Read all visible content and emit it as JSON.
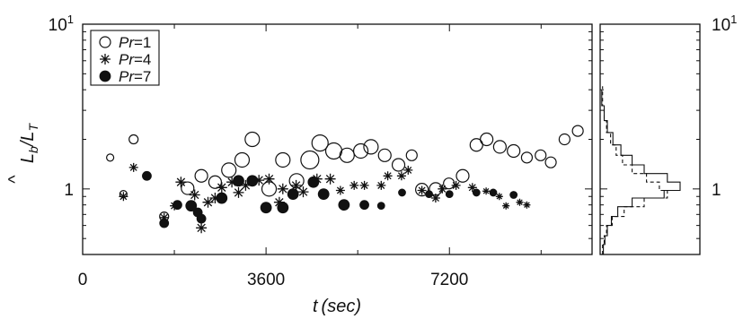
{
  "chart_data": {
    "type": "scatter",
    "xlabel_var": "t",
    "xlabel_unit": "(sec)",
    "ylabel_main": "L",
    "ylabel_hat": "^",
    "ylabel_sub_b": "b",
    "ylabel_denom": "/L",
    "ylabel_sub_T": "T",
    "xlim": [
      0,
      10000
    ],
    "ylim": [
      0.4,
      10
    ],
    "yscale": "log",
    "xticks": [
      {
        "value": 0,
        "label": "0"
      },
      {
        "value": 3600,
        "label": "3600"
      },
      {
        "value": 7200,
        "label": "7200"
      }
    ],
    "yticks": [
      {
        "value": 1,
        "label": "1"
      },
      {
        "value": 10,
        "base": "10",
        "exp": "1"
      }
    ],
    "legend": {
      "position": "top-left",
      "entries": [
        {
          "prefix": "Pr",
          "suffix": "=1",
          "marker": "open-circle"
        },
        {
          "prefix": "Pr",
          "suffix": "=4",
          "marker": "asterisk"
        },
        {
          "prefix": "Pr",
          "suffix": "=7",
          "marker": "filled-circle"
        }
      ]
    },
    "series": [
      {
        "marker": "open-circle",
        "points": [
          {
            "x": 540,
            "y": 1.55,
            "s": 4
          },
          {
            "x": 800,
            "y": 0.93,
            "s": 4
          },
          {
            "x": 1000,
            "y": 2.0,
            "s": 5
          },
          {
            "x": 1600,
            "y": 0.68,
            "s": 5
          },
          {
            "x": 2060,
            "y": 1.01,
            "s": 7
          },
          {
            "x": 2330,
            "y": 1.2,
            "s": 7
          },
          {
            "x": 2600,
            "y": 1.1,
            "s": 7
          },
          {
            "x": 2870,
            "y": 1.3,
            "s": 8
          },
          {
            "x": 3130,
            "y": 1.5,
            "s": 8
          },
          {
            "x": 3330,
            "y": 2.0,
            "s": 8
          },
          {
            "x": 3660,
            "y": 1.0,
            "s": 8
          },
          {
            "x": 3930,
            "y": 1.5,
            "s": 8
          },
          {
            "x": 4200,
            "y": 1.12,
            "s": 8
          },
          {
            "x": 4460,
            "y": 1.5,
            "s": 10
          },
          {
            "x": 4660,
            "y": 1.9,
            "s": 9
          },
          {
            "x": 4930,
            "y": 1.7,
            "s": 9
          },
          {
            "x": 5190,
            "y": 1.6,
            "s": 8
          },
          {
            "x": 5460,
            "y": 1.7,
            "s": 8
          },
          {
            "x": 5660,
            "y": 1.8,
            "s": 8
          },
          {
            "x": 5930,
            "y": 1.6,
            "s": 7
          },
          {
            "x": 6200,
            "y": 1.4,
            "s": 7
          },
          {
            "x": 6460,
            "y": 1.6,
            "s": 6
          },
          {
            "x": 6660,
            "y": 0.99,
            "s": 7
          },
          {
            "x": 6930,
            "y": 1.0,
            "s": 7
          },
          {
            "x": 7190,
            "y": 1.08,
            "s": 6
          },
          {
            "x": 7460,
            "y": 1.2,
            "s": 7
          },
          {
            "x": 7730,
            "y": 1.85,
            "s": 7
          },
          {
            "x": 7930,
            "y": 2.0,
            "s": 7
          },
          {
            "x": 8190,
            "y": 1.8,
            "s": 7
          },
          {
            "x": 8460,
            "y": 1.7,
            "s": 7
          },
          {
            "x": 8720,
            "y": 1.55,
            "s": 6
          },
          {
            "x": 8990,
            "y": 1.6,
            "s": 6
          },
          {
            "x": 9190,
            "y": 1.45,
            "s": 6
          },
          {
            "x": 9460,
            "y": 2.0,
            "s": 6
          },
          {
            "x": 9720,
            "y": 2.25,
            "s": 6
          }
        ]
      },
      {
        "marker": "asterisk",
        "points": [
          {
            "x": 800,
            "y": 0.9,
            "s": 5
          },
          {
            "x": 1000,
            "y": 1.35,
            "s": 5
          },
          {
            "x": 1600,
            "y": 0.67,
            "s": 5
          },
          {
            "x": 1800,
            "y": 0.79,
            "s": 5
          },
          {
            "x": 1930,
            "y": 1.1,
            "s": 6
          },
          {
            "x": 2200,
            "y": 0.92,
            "s": 6
          },
          {
            "x": 2330,
            "y": 0.58,
            "s": 6
          },
          {
            "x": 2460,
            "y": 0.83,
            "s": 6
          },
          {
            "x": 2600,
            "y": 0.88,
            "s": 6
          },
          {
            "x": 2730,
            "y": 1.02,
            "s": 6
          },
          {
            "x": 2930,
            "y": 1.1,
            "s": 6
          },
          {
            "x": 3060,
            "y": 0.95,
            "s": 6
          },
          {
            "x": 3200,
            "y": 1.05,
            "s": 6
          },
          {
            "x": 3460,
            "y": 1.13,
            "s": 6
          },
          {
            "x": 3660,
            "y": 1.15,
            "s": 6
          },
          {
            "x": 3860,
            "y": 0.83,
            "s": 6
          },
          {
            "x": 3930,
            "y": 1.0,
            "s": 6
          },
          {
            "x": 4190,
            "y": 1.05,
            "s": 6
          },
          {
            "x": 4330,
            "y": 0.96,
            "s": 6
          },
          {
            "x": 4600,
            "y": 1.15,
            "s": 6
          },
          {
            "x": 4860,
            "y": 1.15,
            "s": 6
          },
          {
            "x": 5060,
            "y": 0.98,
            "s": 5
          },
          {
            "x": 5330,
            "y": 1.05,
            "s": 5
          },
          {
            "x": 5530,
            "y": 1.05,
            "s": 5
          },
          {
            "x": 5860,
            "y": 1.05,
            "s": 5
          },
          {
            "x": 5990,
            "y": 1.2,
            "s": 5
          },
          {
            "x": 6260,
            "y": 1.2,
            "s": 5
          },
          {
            "x": 6390,
            "y": 1.3,
            "s": 5
          },
          {
            "x": 6660,
            "y": 0.98,
            "s": 5
          },
          {
            "x": 6930,
            "y": 0.88,
            "s": 5
          },
          {
            "x": 7060,
            "y": 1.0,
            "s": 5
          },
          {
            "x": 7330,
            "y": 1.05,
            "s": 5
          },
          {
            "x": 7650,
            "y": 1.02,
            "s": 5
          },
          {
            "x": 7920,
            "y": 0.97,
            "s": 4
          },
          {
            "x": 8180,
            "y": 0.9,
            "s": 4
          },
          {
            "x": 8310,
            "y": 0.79,
            "s": 4
          },
          {
            "x": 8580,
            "y": 0.83,
            "s": 4
          },
          {
            "x": 8720,
            "y": 0.8,
            "s": 4
          }
        ]
      },
      {
        "marker": "filled-circle",
        "points": [
          {
            "x": 1260,
            "y": 1.2,
            "s": 5
          },
          {
            "x": 1600,
            "y": 0.62,
            "s": 5
          },
          {
            "x": 1860,
            "y": 0.8,
            "s": 5
          },
          {
            "x": 2130,
            "y": 0.79,
            "s": 6
          },
          {
            "x": 2260,
            "y": 0.72,
            "s": 5
          },
          {
            "x": 2330,
            "y": 0.66,
            "s": 5
          },
          {
            "x": 2730,
            "y": 0.88,
            "s": 6
          },
          {
            "x": 3060,
            "y": 1.12,
            "s": 6
          },
          {
            "x": 3330,
            "y": 1.12,
            "s": 6
          },
          {
            "x": 3600,
            "y": 0.77,
            "s": 6
          },
          {
            "x": 3930,
            "y": 0.77,
            "s": 6
          },
          {
            "x": 4130,
            "y": 0.93,
            "s": 6
          },
          {
            "x": 4530,
            "y": 1.1,
            "s": 6
          },
          {
            "x": 4730,
            "y": 0.93,
            "s": 6
          },
          {
            "x": 5130,
            "y": 0.8,
            "s": 6
          },
          {
            "x": 5530,
            "y": 0.8,
            "s": 5
          },
          {
            "x": 5860,
            "y": 0.79,
            "s": 4
          },
          {
            "x": 6270,
            "y": 0.95,
            "s": 4
          },
          {
            "x": 6800,
            "y": 0.93,
            "s": 4
          },
          {
            "x": 7200,
            "y": 0.93,
            "s": 4
          },
          {
            "x": 7730,
            "y": 0.95,
            "s": 4
          },
          {
            "x": 8060,
            "y": 0.95,
            "s": 4
          },
          {
            "x": 8460,
            "y": 0.92,
            "s": 4
          }
        ]
      }
    ],
    "side_histogram": {
      "series": [
        {
          "style": "solid",
          "bins": [
            {
              "lo": 0.4,
              "hi": 0.46,
              "n": 4
            },
            {
              "lo": 0.46,
              "hi": 0.52,
              "n": 6
            },
            {
              "lo": 0.52,
              "hi": 0.6,
              "n": 9
            },
            {
              "lo": 0.6,
              "hi": 0.68,
              "n": 14
            },
            {
              "lo": 0.68,
              "hi": 0.78,
              "n": 22
            },
            {
              "lo": 0.78,
              "hi": 0.88,
              "n": 40
            },
            {
              "lo": 0.88,
              "hi": 0.98,
              "n": 80
            },
            {
              "lo": 0.98,
              "hi": 1.1,
              "n": 100
            },
            {
              "lo": 1.1,
              "hi": 1.24,
              "n": 84
            },
            {
              "lo": 1.24,
              "hi": 1.4,
              "n": 55
            },
            {
              "lo": 1.4,
              "hi": 1.6,
              "n": 40
            },
            {
              "lo": 1.6,
              "hi": 1.85,
              "n": 26
            },
            {
              "lo": 1.85,
              "hi": 2.2,
              "n": 16
            },
            {
              "lo": 2.2,
              "hi": 2.6,
              "n": 9
            },
            {
              "lo": 2.6,
              "hi": 3.2,
              "n": 5
            },
            {
              "lo": 3.2,
              "hi": 4.0,
              "n": 2
            }
          ]
        },
        {
          "style": "dashed",
          "bins": [
            {
              "lo": 0.4,
              "hi": 0.46,
              "n": 3
            },
            {
              "lo": 0.46,
              "hi": 0.52,
              "n": 5
            },
            {
              "lo": 0.52,
              "hi": 0.6,
              "n": 8
            },
            {
              "lo": 0.6,
              "hi": 0.68,
              "n": 15
            },
            {
              "lo": 0.68,
              "hi": 0.78,
              "n": 30
            },
            {
              "lo": 0.78,
              "hi": 0.88,
              "n": 55
            },
            {
              "lo": 0.88,
              "hi": 0.98,
              "n": 84
            },
            {
              "lo": 0.98,
              "hi": 1.1,
              "n": 74
            },
            {
              "lo": 1.1,
              "hi": 1.24,
              "n": 58
            },
            {
              "lo": 1.24,
              "hi": 1.4,
              "n": 40
            },
            {
              "lo": 1.4,
              "hi": 1.6,
              "n": 28
            },
            {
              "lo": 1.6,
              "hi": 1.85,
              "n": 20
            },
            {
              "lo": 1.85,
              "hi": 2.2,
              "n": 13
            },
            {
              "lo": 2.2,
              "hi": 2.6,
              "n": 8
            },
            {
              "lo": 2.6,
              "hi": 3.2,
              "n": 5
            },
            {
              "lo": 3.2,
              "hi": 4.2,
              "n": 3
            }
          ]
        }
      ]
    }
  }
}
